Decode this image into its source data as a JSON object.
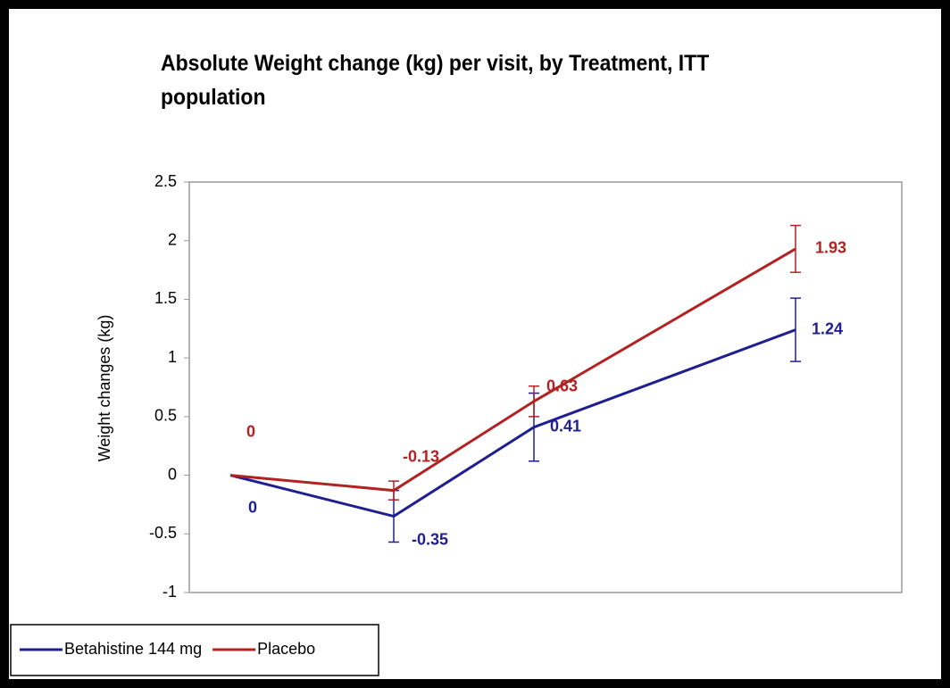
{
  "chart_data": {
    "type": "line",
    "title": "Absolute Weight change (kg) per visit, by Treatment, ITT population",
    "y_label": "Weight changes (kg)",
    "categories": [
      null,
      null,
      null,
      null
    ],
    "series": [
      {
        "name": "Betahistine 144 mg",
        "color": "#1f1f8f",
        "values": [
          0,
          -0.35,
          0.41,
          1.24
        ],
        "errors": [
          0,
          0.22,
          0.29,
          0.27
        ]
      },
      {
        "name": "Placebo",
        "color": "#b22222",
        "values": [
          0,
          -0.13,
          0.63,
          1.93
        ],
        "errors": [
          0,
          0.08,
          0.13,
          0.2
        ]
      }
    ],
    "ylim": [
      -1,
      2.5
    ],
    "yticks": [
      -1,
      -0.5,
      0,
      0.5,
      1,
      1.5,
      2,
      2.5
    ],
    "grid": false,
    "legend": "bottom-left"
  }
}
